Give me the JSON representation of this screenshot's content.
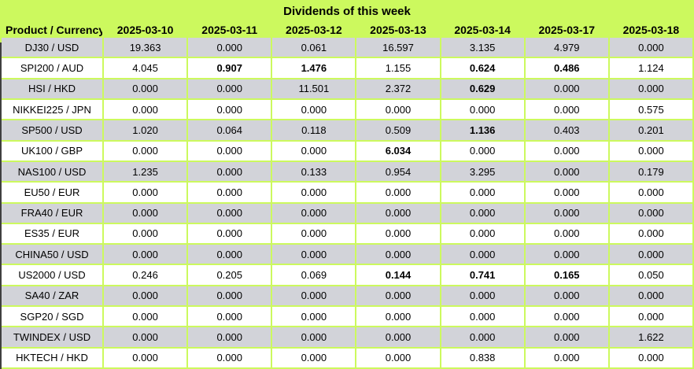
{
  "title": "Dividends of this week",
  "colors": {
    "table_green": "#ccf95e",
    "row_gray": "#d2d3d9",
    "row_white": "#ffffff",
    "text": "#000000",
    "left_edge": "#3f3f3f"
  },
  "chart_data": {
    "type": "table",
    "title": "Dividends of this week",
    "categories": [
      "2025-03-10",
      "2025-03-11",
      "2025-03-12",
      "2025-03-13",
      "2025-03-14",
      "2025-03-17",
      "2025-03-18"
    ],
    "series": [
      {
        "name": "DJ30 / USD",
        "values": [
          19.363,
          0.0,
          0.061,
          16.597,
          3.135,
          4.979,
          0.0
        ]
      },
      {
        "name": "SPI200 / AUD",
        "values": [
          4.045,
          0.907,
          1.476,
          1.155,
          0.624,
          0.486,
          1.124
        ]
      },
      {
        "name": "HSI / HKD",
        "values": [
          0.0,
          0.0,
          11.501,
          2.372,
          0.629,
          0.0,
          0.0
        ]
      },
      {
        "name": "NIKKEI225 / JPN",
        "values": [
          0.0,
          0.0,
          0.0,
          0.0,
          0.0,
          0.0,
          0.575
        ]
      },
      {
        "name": "SP500 / USD",
        "values": [
          1.02,
          0.064,
          0.118,
          0.509,
          1.136,
          0.403,
          0.201
        ]
      },
      {
        "name": "UK100 / GBP",
        "values": [
          0.0,
          0.0,
          0.0,
          6.034,
          0.0,
          0.0,
          0.0
        ]
      },
      {
        "name": "NAS100 / USD",
        "values": [
          1.235,
          0.0,
          0.133,
          0.954,
          3.295,
          0.0,
          0.179
        ]
      },
      {
        "name": "EU50 / EUR",
        "values": [
          0.0,
          0.0,
          0.0,
          0.0,
          0.0,
          0.0,
          0.0
        ]
      },
      {
        "name": "FRA40 / EUR",
        "values": [
          0.0,
          0.0,
          0.0,
          0.0,
          0.0,
          0.0,
          0.0
        ]
      },
      {
        "name": "ES35 / EUR",
        "values": [
          0.0,
          0.0,
          0.0,
          0.0,
          0.0,
          0.0,
          0.0
        ]
      },
      {
        "name": "CHINA50 / USD",
        "values": [
          0.0,
          0.0,
          0.0,
          0.0,
          0.0,
          0.0,
          0.0
        ]
      },
      {
        "name": "US2000 / USD",
        "values": [
          0.246,
          0.205,
          0.069,
          0.144,
          0.741,
          0.165,
          0.05
        ]
      },
      {
        "name": "SA40 / ZAR",
        "values": [
          0.0,
          0.0,
          0.0,
          0.0,
          0.0,
          0.0,
          0.0
        ]
      },
      {
        "name": "SGP20 / SGD",
        "values": [
          0.0,
          0.0,
          0.0,
          0.0,
          0.0,
          0.0,
          0.0
        ]
      },
      {
        "name": "TWINDEX / USD",
        "values": [
          0.0,
          0.0,
          0.0,
          0.0,
          0.0,
          0.0,
          1.622
        ]
      },
      {
        "name": "HKTECH / HKD",
        "values": [
          0.0,
          0.0,
          0.0,
          0.0,
          0.838,
          0.0,
          0.0
        ]
      }
    ]
  },
  "table": {
    "header_label": "Product / Currency",
    "date_columns": [
      "2025-03-10",
      "2025-03-11",
      "2025-03-12",
      "2025-03-13",
      "2025-03-14",
      "2025-03-17",
      "2025-03-18"
    ],
    "rows": [
      {
        "product": "DJ30 / USD",
        "values": [
          "19.363",
          "0.000",
          "0.061",
          "16.597",
          "3.135",
          "4.979",
          "0.000"
        ],
        "bold_indices": []
      },
      {
        "product": "SPI200 / AUD",
        "values": [
          "4.045",
          "0.907",
          "1.476",
          "1.155",
          "0.624",
          "0.486",
          "1.124"
        ],
        "bold_indices": [
          1,
          2,
          4,
          5
        ]
      },
      {
        "product": "HSI / HKD",
        "values": [
          "0.000",
          "0.000",
          "11.501",
          "2.372",
          "0.629",
          "0.000",
          "0.000"
        ],
        "bold_indices": [
          4
        ]
      },
      {
        "product": "NIKKEI225 / JPN",
        "values": [
          "0.000",
          "0.000",
          "0.000",
          "0.000",
          "0.000",
          "0.000",
          "0.575"
        ],
        "bold_indices": []
      },
      {
        "product": "SP500 / USD",
        "values": [
          "1.020",
          "0.064",
          "0.118",
          "0.509",
          "1.136",
          "0.403",
          "0.201"
        ],
        "bold_indices": [
          4
        ]
      },
      {
        "product": "UK100 / GBP",
        "values": [
          "0.000",
          "0.000",
          "0.000",
          "6.034",
          "0.000",
          "0.000",
          "0.000"
        ],
        "bold_indices": [
          3
        ]
      },
      {
        "product": "NAS100 / USD",
        "values": [
          "1.235",
          "0.000",
          "0.133",
          "0.954",
          "3.295",
          "0.000",
          "0.179"
        ],
        "bold_indices": []
      },
      {
        "product": "EU50 / EUR",
        "values": [
          "0.000",
          "0.000",
          "0.000",
          "0.000",
          "0.000",
          "0.000",
          "0.000"
        ],
        "bold_indices": []
      },
      {
        "product": "FRA40 / EUR",
        "values": [
          "0.000",
          "0.000",
          "0.000",
          "0.000",
          "0.000",
          "0.000",
          "0.000"
        ],
        "bold_indices": []
      },
      {
        "product": "ES35 / EUR",
        "values": [
          "0.000",
          "0.000",
          "0.000",
          "0.000",
          "0.000",
          "0.000",
          "0.000"
        ],
        "bold_indices": []
      },
      {
        "product": "CHINA50 / USD",
        "values": [
          "0.000",
          "0.000",
          "0.000",
          "0.000",
          "0.000",
          "0.000",
          "0.000"
        ],
        "bold_indices": []
      },
      {
        "product": "US2000 / USD",
        "values": [
          "0.246",
          "0.205",
          "0.069",
          "0.144",
          "0.741",
          "0.165",
          "0.050"
        ],
        "bold_indices": [
          3,
          4,
          5
        ]
      },
      {
        "product": "SA40 / ZAR",
        "values": [
          "0.000",
          "0.000",
          "0.000",
          "0.000",
          "0.000",
          "0.000",
          "0.000"
        ],
        "bold_indices": []
      },
      {
        "product": "SGP20 / SGD",
        "values": [
          "0.000",
          "0.000",
          "0.000",
          "0.000",
          "0.000",
          "0.000",
          "0.000"
        ],
        "bold_indices": []
      },
      {
        "product": "TWINDEX / USD",
        "values": [
          "0.000",
          "0.000",
          "0.000",
          "0.000",
          "0.000",
          "0.000",
          "1.622"
        ],
        "bold_indices": []
      },
      {
        "product": "HKTECH / HKD",
        "values": [
          "0.000",
          "0.000",
          "0.000",
          "0.000",
          "0.838",
          "0.000",
          "0.000"
        ],
        "bold_indices": []
      }
    ]
  }
}
